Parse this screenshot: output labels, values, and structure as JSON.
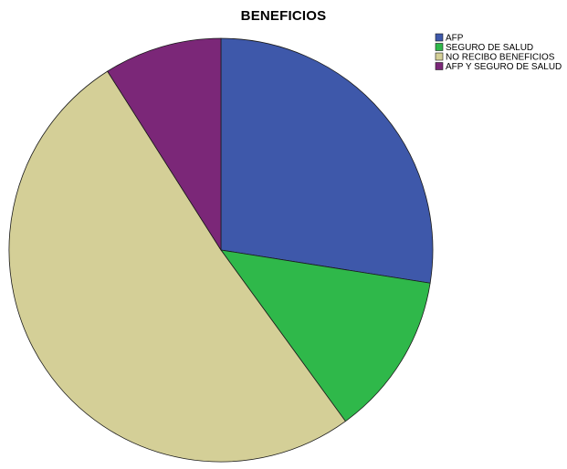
{
  "chart_data": {
    "type": "pie",
    "title": "BENEFICIOS",
    "categories": [
      "AFP",
      "SEGURO DE SALUD",
      "NO RECIBO BENEFICIOS",
      "AFP Y SEGURO DE SALUD"
    ],
    "values": [
      27.5,
      12.5,
      51.0,
      9.0
    ],
    "colors": [
      "#3e58aa",
      "#2fb84a",
      "#d4cf97",
      "#7b2778"
    ],
    "start": "12 o'clock",
    "direction": "clockwise",
    "legend_position": "top-right"
  }
}
